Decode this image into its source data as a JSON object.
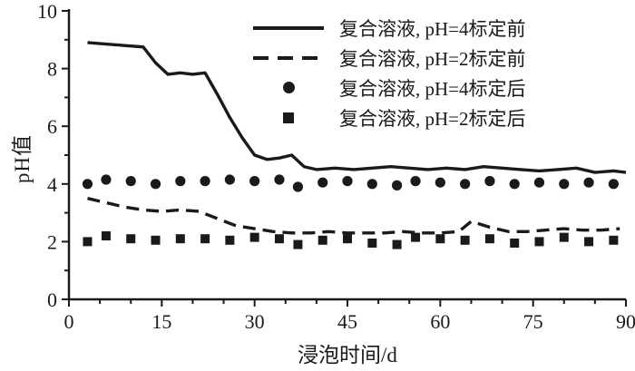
{
  "chart_data": {
    "type": "line",
    "title": "",
    "xlabel": "浸泡时间/d",
    "ylabel": "pH值",
    "xlim": [
      0,
      90
    ],
    "ylim": [
      0,
      10
    ],
    "xticks": [
      0,
      15,
      30,
      45,
      60,
      75,
      90
    ],
    "yticks": [
      0,
      2,
      4,
      6,
      8,
      10
    ],
    "xtick_minor_step": 5,
    "ytick_minor_step": 1,
    "grid": "off",
    "legend_position": "top-center-inside",
    "color": "#1a1a1a",
    "series": [
      {
        "name": "复合溶液, pH=4标定前",
        "style": "solid-line",
        "x": [
          3,
          6,
          9,
          12,
          14,
          16,
          18,
          20,
          22,
          24,
          26,
          28,
          30,
          32,
          34,
          36,
          38,
          40,
          43,
          46,
          49,
          52,
          55,
          58,
          61,
          64,
          67,
          70,
          73,
          76,
          79,
          82,
          85,
          88,
          90
        ],
        "y": [
          8.9,
          8.85,
          8.8,
          8.75,
          8.2,
          7.8,
          7.85,
          7.8,
          7.85,
          7.1,
          6.3,
          5.6,
          5.0,
          4.85,
          4.9,
          5.0,
          4.6,
          4.5,
          4.55,
          4.5,
          4.55,
          4.6,
          4.55,
          4.5,
          4.55,
          4.5,
          4.6,
          4.55,
          4.5,
          4.45,
          4.5,
          4.55,
          4.4,
          4.45,
          4.4
        ]
      },
      {
        "name": "复合溶液, pH=2标定前",
        "style": "dashed-line",
        "x": [
          3,
          6,
          9,
          12,
          15,
          18,
          21,
          24,
          27,
          30,
          33,
          36,
          39,
          42,
          45,
          48,
          51,
          54,
          57,
          60,
          63,
          65,
          68,
          71,
          74,
          77,
          80,
          83,
          86,
          89
        ],
        "y": [
          3.5,
          3.35,
          3.2,
          3.1,
          3.05,
          3.1,
          3.05,
          2.8,
          2.55,
          2.45,
          2.35,
          2.3,
          2.3,
          2.35,
          2.3,
          2.3,
          2.3,
          2.35,
          2.3,
          2.3,
          2.35,
          2.7,
          2.5,
          2.35,
          2.35,
          2.4,
          2.45,
          2.4,
          2.4,
          2.45
        ]
      },
      {
        "name": "复合溶液, pH=4标定后",
        "style": "circle-marker",
        "x": [
          3,
          6,
          10,
          14,
          18,
          22,
          26,
          30,
          34,
          37,
          41,
          45,
          49,
          53,
          56,
          60,
          64,
          68,
          72,
          76,
          80,
          84,
          88
        ],
        "y": [
          4.0,
          4.15,
          4.1,
          4.0,
          4.1,
          4.1,
          4.15,
          4.1,
          4.15,
          3.9,
          4.05,
          4.1,
          4.0,
          3.95,
          4.1,
          4.05,
          4.0,
          4.1,
          4.0,
          4.05,
          4.0,
          4.05,
          4.0
        ]
      },
      {
        "name": "复合溶液, pH=2标定后",
        "style": "square-marker",
        "x": [
          3,
          6,
          10,
          14,
          18,
          22,
          26,
          30,
          34,
          37,
          41,
          45,
          49,
          53,
          56,
          60,
          64,
          68,
          72,
          76,
          80,
          84,
          88
        ],
        "y": [
          2.0,
          2.2,
          2.1,
          2.05,
          2.1,
          2.1,
          2.05,
          2.15,
          2.1,
          1.9,
          2.05,
          2.1,
          1.95,
          1.9,
          2.15,
          2.1,
          2.05,
          2.1,
          1.95,
          2.0,
          2.15,
          2.0,
          2.05
        ]
      }
    ]
  }
}
